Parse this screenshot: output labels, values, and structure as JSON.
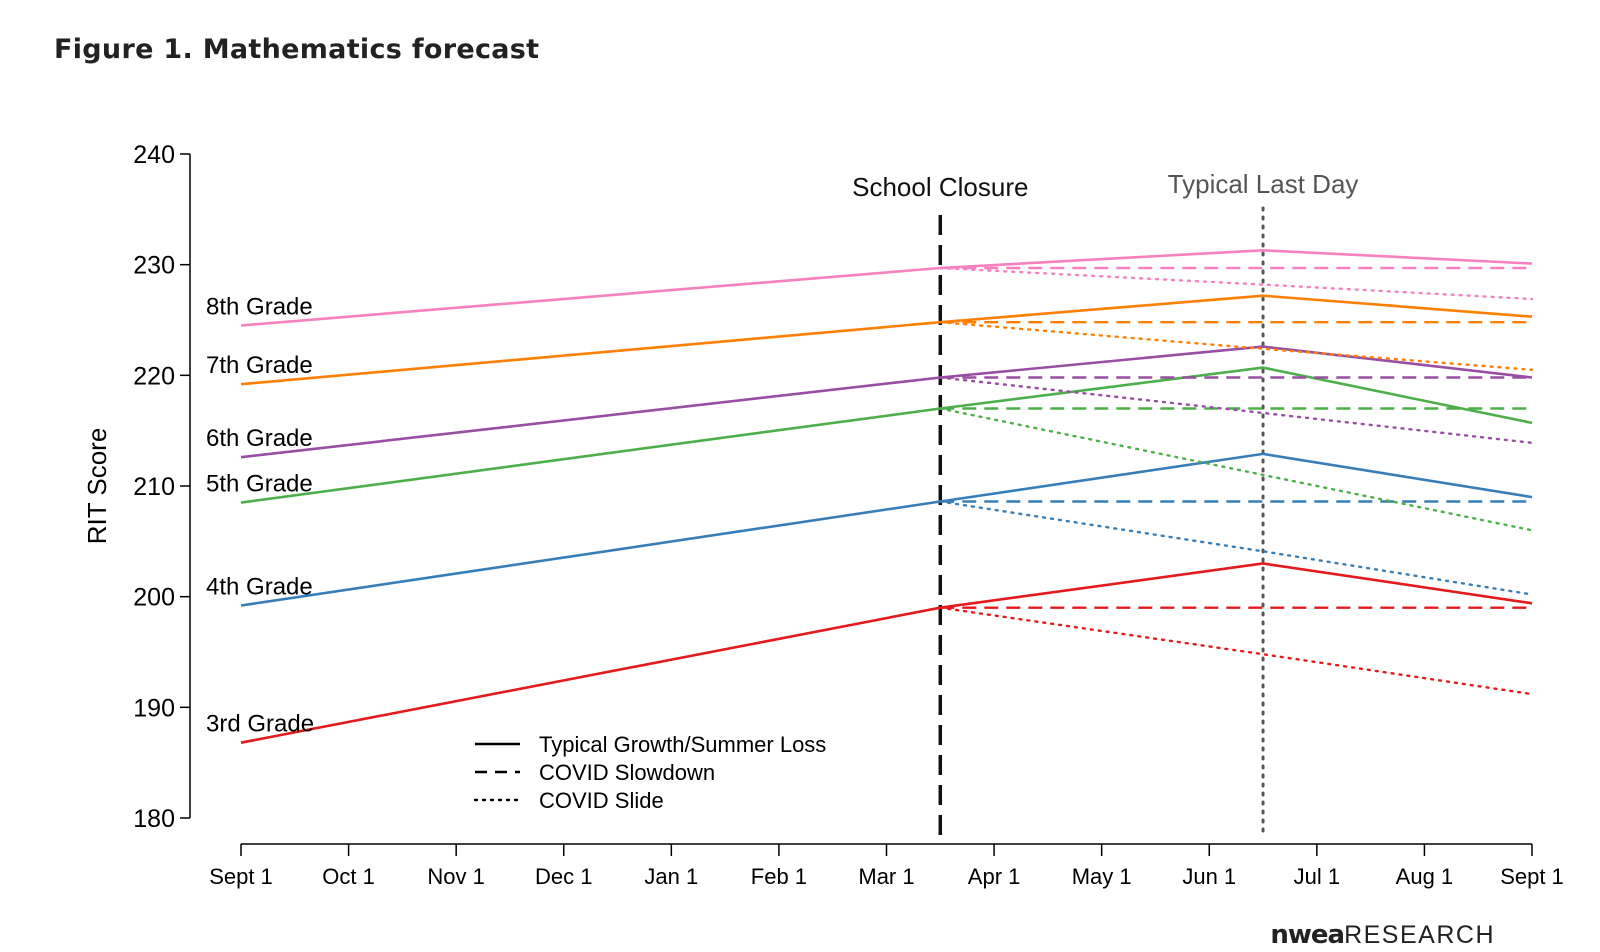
{
  "header": {
    "title": "Figure 1. Mathematics forecast"
  },
  "brand": {
    "main": "nwea",
    "sub": "RESEARCH"
  },
  "chart_data": {
    "type": "line",
    "title": "Figure 1. Mathematics forecast",
    "xlabel": "",
    "ylabel": "RIT Score",
    "x_ticks": [
      "Sept 1",
      "Oct 1",
      "Nov 1",
      "Dec 1",
      "Jan 1",
      "Feb 1",
      "Mar 1",
      "Apr 1",
      "May 1",
      "Jun 1",
      "Jul 1",
      "Aug 1",
      "Sept 1"
    ],
    "x_range": [
      0,
      12
    ],
    "ylim": [
      180,
      240
    ],
    "y_ticks": [
      180,
      190,
      200,
      210,
      220,
      230,
      240
    ],
    "grid": false,
    "events": [
      {
        "label": "School Closure",
        "x": 6.5,
        "style": "dashed"
      },
      {
        "label": "Typical Last Day",
        "x": 9.5,
        "style": "dotted"
      }
    ],
    "x_points": [
      0,
      6.5,
      9.5,
      12
    ],
    "series": [
      {
        "name": "3rd Grade",
        "color": "#e41a1c",
        "typical": [
          186.8,
          199.0,
          203.0,
          199.4
        ],
        "slowdown": [
          199.0,
          199.0,
          199.0
        ],
        "slide": [
          199.0,
          194.8,
          191.2
        ]
      },
      {
        "name": "4th Grade",
        "color": "#377eb8",
        "typical": [
          199.2,
          208.6,
          212.9,
          209.0
        ],
        "slowdown": [
          208.6,
          208.6,
          208.6
        ],
        "slide": [
          208.6,
          204.1,
          200.2
        ]
      },
      {
        "name": "5th Grade",
        "color": "#4daf4a",
        "typical": [
          208.5,
          217.0,
          220.7,
          215.7
        ],
        "slowdown": [
          217.0,
          217.0,
          217.0
        ],
        "slide": [
          217.0,
          211.0,
          206.0
        ]
      },
      {
        "name": "6th Grade",
        "color": "#984ea3",
        "typical": [
          212.6,
          219.8,
          222.6,
          219.8
        ],
        "slowdown": [
          219.8,
          219.8,
          219.8
        ],
        "slide": [
          219.8,
          216.6,
          213.9
        ]
      },
      {
        "name": "7th Grade",
        "color": "#ff7f00",
        "typical": [
          219.2,
          224.8,
          227.2,
          225.3
        ],
        "slowdown": [
          224.8,
          224.8,
          224.8
        ],
        "slide": [
          224.8,
          222.4,
          220.5
        ]
      },
      {
        "name": "8th Grade",
        "color": "#f781bf",
        "typical": [
          224.5,
          229.7,
          231.3,
          230.1
        ],
        "slowdown": [
          229.7,
          229.7,
          229.7
        ],
        "slide": [
          229.7,
          228.2,
          226.9
        ]
      }
    ],
    "legend": {
      "position": "bottom-left",
      "entries": [
        {
          "label": "Typical Growth/Summer Loss",
          "style": "solid"
        },
        {
          "label": "COVID Slowdown",
          "style": "dashed"
        },
        {
          "label": "COVID Slide",
          "style": "dotted"
        }
      ]
    }
  }
}
